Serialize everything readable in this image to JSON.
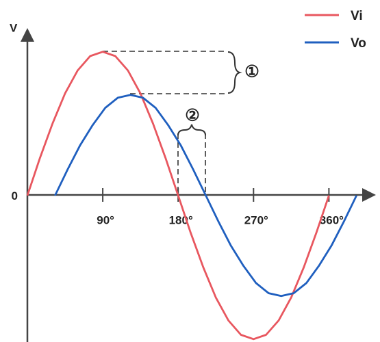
{
  "chart_data": {
    "type": "line",
    "y_label": "V",
    "xlim": [
      0,
      421
    ],
    "ylim": [
      -1.02,
      1.17
    ],
    "xticks": [
      {
        "value": 90,
        "label": "90°"
      },
      {
        "value": 180,
        "label": "180°"
      },
      {
        "value": 270,
        "label": "270°"
      },
      {
        "value": 360,
        "label": "360°"
      }
    ],
    "yticks": [
      0
    ],
    "series": [
      {
        "name": "Vi",
        "color": "#e8575f",
        "x": [
          0,
          15,
          30,
          45,
          60,
          75,
          90,
          105,
          120,
          135,
          150,
          165,
          180,
          195,
          210,
          225,
          240,
          255,
          270,
          285,
          300,
          315,
          330,
          345,
          360
        ],
        "values": [
          0,
          0.26,
          0.5,
          0.71,
          0.87,
          0.97,
          1,
          0.97,
          0.87,
          0.71,
          0.5,
          0.26,
          0,
          -0.26,
          -0.5,
          -0.71,
          -0.87,
          -0.97,
          -1,
          -0.97,
          -0.87,
          -0.71,
          -0.5,
          -0.26,
          0
        ]
      },
      {
        "name": "Vo",
        "color": "#1f5fbf",
        "x": [
          33,
          48,
          63,
          78,
          93,
          108,
          123,
          138,
          153,
          168,
          183,
          198,
          213,
          228,
          243,
          258,
          273,
          288,
          303,
          318,
          333,
          348,
          363,
          378,
          393
        ],
        "values": [
          0,
          0.18,
          0.35,
          0.49,
          0.61,
          0.68,
          0.7,
          0.68,
          0.61,
          0.49,
          0.35,
          0.18,
          0,
          -0.18,
          -0.35,
          -0.49,
          -0.61,
          -0.68,
          -0.7,
          -0.68,
          -0.61,
          -0.49,
          -0.35,
          -0.18,
          0
        ]
      }
    ],
    "annotations": [
      "①",
      "②"
    ]
  }
}
